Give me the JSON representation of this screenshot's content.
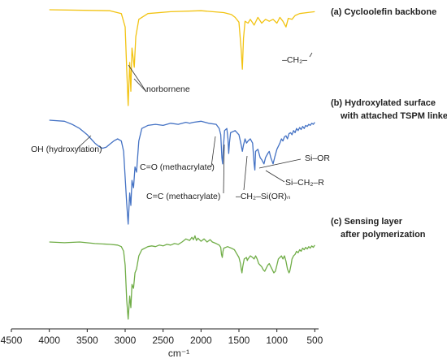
{
  "chart_data": {
    "type": "line",
    "xlabel": "cm⁻¹",
    "xlim": [
      4500,
      450
    ],
    "x_reversed": true,
    "x_ticks": [
      4500,
      4000,
      3500,
      3000,
      2500,
      2000,
      1500,
      1000,
      500
    ],
    "series": [
      {
        "name": "(a) Cycloolefin backbone",
        "title_lines": [
          "(a) Cycloolefin backbone"
        ],
        "color": "#F2C311",
        "points": [
          [
            4000,
            0
          ],
          [
            3200,
            1
          ],
          [
            3050,
            4
          ],
          [
            3000,
            18
          ],
          [
            2980,
            62
          ],
          [
            2960,
            100
          ],
          [
            2940,
            55
          ],
          [
            2925,
            85
          ],
          [
            2910,
            40
          ],
          [
            2880,
            60
          ],
          [
            2860,
            28
          ],
          [
            2820,
            10
          ],
          [
            2700,
            4
          ],
          [
            2400,
            2
          ],
          [
            2000,
            1
          ],
          [
            1700,
            3
          ],
          [
            1600,
            5
          ],
          [
            1550,
            8
          ],
          [
            1500,
            13
          ],
          [
            1470,
            42
          ],
          [
            1455,
            62
          ],
          [
            1440,
            30
          ],
          [
            1420,
            12
          ],
          [
            1380,
            14
          ],
          [
            1350,
            10
          ],
          [
            1300,
            16
          ],
          [
            1250,
            8
          ],
          [
            1200,
            14
          ],
          [
            1150,
            10
          ],
          [
            1100,
            12
          ],
          [
            1050,
            10
          ],
          [
            1000,
            14
          ],
          [
            960,
            8
          ],
          [
            920,
            12
          ],
          [
            880,
            18
          ],
          [
            850,
            9
          ],
          [
            800,
            10
          ],
          [
            760,
            6
          ],
          [
            700,
            4
          ],
          [
            600,
            3
          ],
          [
            500,
            2
          ]
        ],
        "annotations": [
          {
            "text": "norbornene",
            "x": 2900
          },
          {
            "text": "–CH₂–",
            "x": 1460
          }
        ]
      },
      {
        "name": "(b) Hydroxylated surface with attached TSPM linkers",
        "title_lines": [
          "(b) Hydroxylated surface",
          "with attached TSPM linkers"
        ],
        "color": "#4472C4",
        "points": [
          [
            4000,
            0
          ],
          [
            3800,
            1
          ],
          [
            3700,
            4
          ],
          [
            3600,
            8
          ],
          [
            3500,
            14
          ],
          [
            3450,
            18
          ],
          [
            3400,
            22
          ],
          [
            3350,
            25
          ],
          [
            3300,
            27
          ],
          [
            3250,
            26
          ],
          [
            3200,
            23
          ],
          [
            3150,
            20
          ],
          [
            3100,
            18
          ],
          [
            3050,
            20
          ],
          [
            3020,
            30
          ],
          [
            3000,
            55
          ],
          [
            2980,
            80
          ],
          [
            2960,
            100
          ],
          [
            2940,
            70
          ],
          [
            2925,
            82
          ],
          [
            2910,
            58
          ],
          [
            2890,
            65
          ],
          [
            2870,
            45
          ],
          [
            2850,
            50
          ],
          [
            2820,
            20
          ],
          [
            2780,
            8
          ],
          [
            2700,
            5
          ],
          [
            2600,
            4
          ],
          [
            2500,
            5
          ],
          [
            2400,
            3
          ],
          [
            2300,
            4
          ],
          [
            2200,
            2
          ],
          [
            2150,
            3
          ],
          [
            2100,
            2
          ],
          [
            2000,
            1
          ],
          [
            1900,
            3
          ],
          [
            1800,
            4
          ],
          [
            1760,
            8
          ],
          [
            1740,
            14
          ],
          [
            1725,
            36
          ],
          [
            1715,
            42
          ],
          [
            1705,
            26
          ],
          [
            1690,
            10
          ],
          [
            1660,
            8
          ],
          [
            1645,
            18
          ],
          [
            1635,
            32
          ],
          [
            1625,
            22
          ],
          [
            1610,
            12
          ],
          [
            1550,
            10
          ],
          [
            1500,
            14
          ],
          [
            1470,
            24
          ],
          [
            1455,
            30
          ],
          [
            1440,
            24
          ],
          [
            1420,
            18
          ],
          [
            1400,
            22
          ],
          [
            1380,
            20
          ],
          [
            1350,
            18
          ],
          [
            1320,
            22
          ],
          [
            1300,
            42
          ],
          [
            1290,
            48
          ],
          [
            1280,
            30
          ],
          [
            1250,
            28
          ],
          [
            1220,
            36
          ],
          [
            1200,
            38
          ],
          [
            1170,
            42
          ],
          [
            1150,
            36
          ],
          [
            1120,
            32
          ],
          [
            1100,
            30
          ],
          [
            1080,
            36
          ],
          [
            1060,
            40
          ],
          [
            1050,
            42
          ],
          [
            1030,
            36
          ],
          [
            1000,
            28
          ],
          [
            960,
            22
          ],
          [
            940,
            18
          ],
          [
            920,
            20
          ],
          [
            900,
            16
          ],
          [
            880,
            15
          ],
          [
            860,
            18
          ],
          [
            840,
            13
          ],
          [
            820,
            12
          ],
          [
            800,
            14
          ],
          [
            780,
            10
          ],
          [
            760,
            12
          ],
          [
            740,
            8
          ],
          [
            720,
            10
          ],
          [
            700,
            7
          ],
          [
            680,
            9
          ],
          [
            660,
            6
          ],
          [
            640,
            8
          ],
          [
            620,
            5
          ],
          [
            600,
            6
          ],
          [
            580,
            4
          ],
          [
            560,
            5
          ],
          [
            540,
            3
          ],
          [
            520,
            4
          ],
          [
            500,
            2
          ]
        ],
        "annotations": [
          {
            "text": "OH (hydroxylation)",
            "x": 3350
          },
          {
            "text": "C=O (methacrylate)",
            "x": 1720
          },
          {
            "text": "C=C (methacrylate)",
            "x": 1635
          },
          {
            "text": "–CH₂–Si(OR)ₙ",
            "x": 1295
          },
          {
            "text": "Si–OR",
            "x": 1080
          },
          {
            "text": "Si–CH₂–R",
            "x": 1050
          }
        ]
      },
      {
        "name": "(c) Sensing layer after polymerization",
        "title_lines": [
          "(c) Sensing layer",
          "after polymerization"
        ],
        "color": "#70AD47",
        "points": [
          [
            4000,
            0
          ],
          [
            3800,
            1
          ],
          [
            3600,
            0
          ],
          [
            3400,
            2
          ],
          [
            3200,
            3
          ],
          [
            3100,
            4
          ],
          [
            3050,
            6
          ],
          [
            3020,
            12
          ],
          [
            3000,
            30
          ],
          [
            2980,
            75
          ],
          [
            2960,
            100
          ],
          [
            2940,
            70
          ],
          [
            2925,
            85
          ],
          [
            2910,
            55
          ],
          [
            2890,
            60
          ],
          [
            2870,
            40
          ],
          [
            2850,
            35
          ],
          [
            2820,
            18
          ],
          [
            2780,
            10
          ],
          [
            2700,
            6
          ],
          [
            2650,
            5
          ],
          [
            2600,
            6
          ],
          [
            2550,
            4
          ],
          [
            2500,
            5
          ],
          [
            2450,
            3
          ],
          [
            2400,
            4
          ],
          [
            2350,
            2
          ],
          [
            2300,
            3
          ],
          [
            2250,
            0
          ],
          [
            2200,
            -4
          ],
          [
            2150,
            -2
          ],
          [
            2120,
            -6
          ],
          [
            2100,
            -3
          ],
          [
            2080,
            -8
          ],
          [
            2060,
            -2
          ],
          [
            2040,
            -5
          ],
          [
            2000,
            -1
          ],
          [
            1960,
            -4
          ],
          [
            1920,
            0
          ],
          [
            1880,
            -3
          ],
          [
            1850,
            0
          ],
          [
            1800,
            2
          ],
          [
            1760,
            4
          ],
          [
            1740,
            7
          ],
          [
            1730,
            16
          ],
          [
            1720,
            20
          ],
          [
            1710,
            12
          ],
          [
            1700,
            8
          ],
          [
            1650,
            6
          ],
          [
            1600,
            8
          ],
          [
            1560,
            10
          ],
          [
            1530,
            15
          ],
          [
            1500,
            20
          ],
          [
            1480,
            28
          ],
          [
            1470,
            35
          ],
          [
            1460,
            40
          ],
          [
            1450,
            32
          ],
          [
            1430,
            22
          ],
          [
            1400,
            20
          ],
          [
            1390,
            24
          ],
          [
            1380,
            22
          ],
          [
            1350,
            18
          ],
          [
            1320,
            20
          ],
          [
            1300,
            22
          ],
          [
            1280,
            18
          ],
          [
            1260,
            22
          ],
          [
            1240,
            28
          ],
          [
            1220,
            30
          ],
          [
            1200,
            32
          ],
          [
            1180,
            36
          ],
          [
            1160,
            38
          ],
          [
            1140,
            34
          ],
          [
            1120,
            30
          ],
          [
            1100,
            28
          ],
          [
            1080,
            32
          ],
          [
            1060,
            36
          ],
          [
            1040,
            40
          ],
          [
            1020,
            38
          ],
          [
            1000,
            30
          ],
          [
            980,
            22
          ],
          [
            960,
            20
          ],
          [
            940,
            18
          ],
          [
            920,
            22
          ],
          [
            900,
            18
          ],
          [
            880,
            25
          ],
          [
            860,
            35
          ],
          [
            840,
            40
          ],
          [
            830,
            38
          ],
          [
            810,
            28
          ],
          [
            800,
            22
          ],
          [
            780,
            18
          ],
          [
            760,
            16
          ],
          [
            740,
            12
          ],
          [
            720,
            14
          ],
          [
            700,
            10
          ],
          [
            680,
            12
          ],
          [
            660,
            8
          ],
          [
            640,
            10
          ],
          [
            620,
            7
          ],
          [
            600,
            9
          ],
          [
            580,
            6
          ],
          [
            560,
            8
          ],
          [
            540,
            5
          ],
          [
            520,
            7
          ],
          [
            500,
            4
          ]
        ]
      }
    ]
  }
}
